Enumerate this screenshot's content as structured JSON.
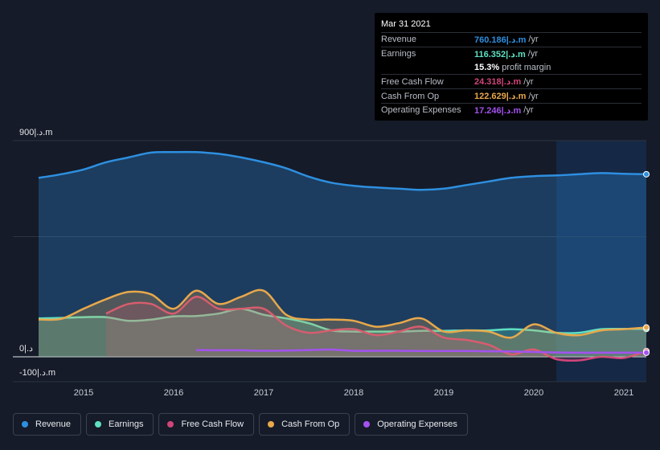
{
  "tooltip": {
    "date": "Mar 31 2021",
    "rows": [
      {
        "label": "Revenue",
        "value": "760.186|.د.m",
        "unit": "/yr",
        "color": "#2e8fe0"
      },
      {
        "label": "Earnings",
        "value": "116.352|.د.m",
        "unit": "/yr",
        "color": "#5fe0c3"
      },
      {
        "label": "",
        "value": "15.3%",
        "unit": "profit margin",
        "color": "#ffffff"
      },
      {
        "label": "Free Cash Flow",
        "value": "24.318|.د.m",
        "unit": "/yr",
        "color": "#d1457a"
      },
      {
        "label": "Cash From Op",
        "value": "122.629|.د.m",
        "unit": "/yr",
        "color": "#e8a84c"
      },
      {
        "label": "Operating Expenses",
        "value": "17.246|.د.m",
        "unit": "/yr",
        "color": "#a352f0"
      }
    ]
  },
  "legend": [
    {
      "label": "Revenue",
      "color": "#2e8fe0"
    },
    {
      "label": "Earnings",
      "color": "#5fe0c3"
    },
    {
      "label": "Free Cash Flow",
      "color": "#d1457a"
    },
    {
      "label": "Cash From Op",
      "color": "#e8a84c"
    },
    {
      "label": "Operating Expenses",
      "color": "#a352f0"
    }
  ],
  "chart_data": {
    "type": "area",
    "y_tick_labels": [
      {
        "value": 900,
        "label": "900|.د.m"
      },
      {
        "value": 0,
        "label": "0|.د"
      },
      {
        "value": -100,
        "label": "-100|.د.m"
      }
    ],
    "ylim": [
      -100,
      900
    ],
    "xlim": [
      2014.5,
      2021.25
    ],
    "x_ticks": [
      2015,
      2016,
      2017,
      2018,
      2019,
      2020,
      2021
    ],
    "highlight_start": 2020.25,
    "series": [
      {
        "name": "Revenue",
        "color": "#2e8fe0",
        "fill": true,
        "x": [
          2014.5,
          2014.75,
          2015.0,
          2015.25,
          2015.5,
          2015.75,
          2016.0,
          2016.25,
          2016.5,
          2016.75,
          2017.0,
          2017.25,
          2017.5,
          2017.75,
          2018.0,
          2018.25,
          2018.5,
          2018.75,
          2019.0,
          2019.25,
          2019.5,
          2019.75,
          2020.0,
          2020.25,
          2020.5,
          2020.75,
          2021.0,
          2021.25
        ],
        "y": [
          745,
          760,
          780,
          810,
          830,
          850,
          852,
          852,
          845,
          830,
          810,
          785,
          750,
          725,
          712,
          705,
          700,
          695,
          700,
          715,
          730,
          745,
          752,
          755,
          760,
          765,
          762,
          760
        ]
      },
      {
        "name": "Earnings",
        "color": "#5fe0c3",
        "fill": true,
        "x": [
          2014.5,
          2014.75,
          2015.0,
          2015.25,
          2015.5,
          2015.75,
          2016.0,
          2016.25,
          2016.5,
          2016.75,
          2017.0,
          2017.25,
          2017.5,
          2017.75,
          2018.0,
          2018.25,
          2018.5,
          2018.75,
          2019.0,
          2019.25,
          2019.5,
          2019.75,
          2020.0,
          2020.25,
          2020.5,
          2020.75,
          2021.0,
          2021.25
        ],
        "y": [
          160,
          162,
          165,
          165,
          150,
          155,
          168,
          170,
          180,
          200,
          175,
          160,
          140,
          110,
          105,
          105,
          105,
          108,
          108,
          110,
          110,
          115,
          110,
          100,
          100,
          115,
          116,
          116
        ]
      },
      {
        "name": "Free Cash Flow",
        "color": "#d1457a",
        "fill": true,
        "x": [
          2015.25,
          2015.5,
          2015.75,
          2016.0,
          2016.25,
          2016.5,
          2016.75,
          2017.0,
          2017.25,
          2017.5,
          2017.75,
          2018.0,
          2018.25,
          2018.5,
          2018.75,
          2019.0,
          2019.25,
          2019.5,
          2019.75,
          2020.0,
          2020.25,
          2020.5,
          2020.75,
          2021.0,
          2021.25
        ],
        "y": [
          180,
          220,
          220,
          180,
          250,
          200,
          200,
          200,
          130,
          100,
          110,
          115,
          90,
          105,
          125,
          80,
          70,
          50,
          10,
          30,
          -10,
          -15,
          0,
          -5,
          24
        ]
      },
      {
        "name": "Cash From Op",
        "color": "#e8a84c",
        "fill": true,
        "x": [
          2014.5,
          2014.75,
          2015.0,
          2015.25,
          2015.5,
          2015.75,
          2016.0,
          2016.25,
          2016.5,
          2016.75,
          2017.0,
          2017.25,
          2017.5,
          2017.75,
          2018.0,
          2018.25,
          2018.5,
          2018.75,
          2019.0,
          2019.25,
          2019.5,
          2019.75,
          2020.0,
          2020.25,
          2020.5,
          2020.75,
          2021.0,
          2021.25
        ],
        "y": [
          155,
          158,
          200,
          240,
          270,
          260,
          200,
          275,
          220,
          250,
          275,
          175,
          155,
          155,
          150,
          125,
          140,
          160,
          105,
          110,
          105,
          80,
          135,
          100,
          90,
          110,
          115,
          122
        ]
      },
      {
        "name": "Operating Expenses",
        "color": "#a352f0",
        "fill": false,
        "x": [
          2016.25,
          2016.5,
          2016.75,
          2017.0,
          2017.25,
          2017.5,
          2017.75,
          2018.0,
          2018.25,
          2018.5,
          2018.75,
          2019.0,
          2019.25,
          2019.5,
          2019.75,
          2020.0,
          2020.25,
          2020.5,
          2020.75,
          2021.0,
          2021.25
        ],
        "y": [
          28,
          27,
          27,
          25,
          26,
          28,
          30,
          25,
          25,
          25,
          24,
          24,
          24,
          23,
          22,
          20,
          18,
          17,
          17,
          17,
          17
        ]
      }
    ]
  }
}
